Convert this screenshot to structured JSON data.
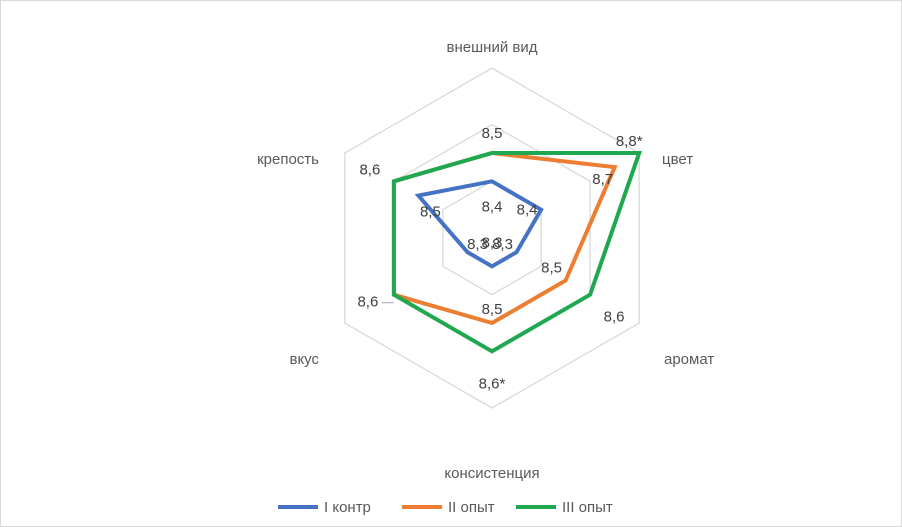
{
  "chart_data": {
    "type": "radar",
    "title": "",
    "categories": [
      "внешний вид",
      "цвет",
      "аромат",
      "консистенция",
      "вкус",
      "крепость"
    ],
    "rmin": 8.2,
    "rmax": 8.8,
    "grid_levels": [
      8.2,
      8.4,
      8.6,
      8.8
    ],
    "grid": true,
    "legend_position": "bottom",
    "series": [
      {
        "name": "I контр",
        "color": "#4472c4",
        "values": [
          8.4,
          8.4,
          8.3,
          8.3,
          8.3,
          8.5
        ],
        "labels": [
          "8,4",
          "8,4",
          "8,3",
          "8,3",
          "8,3",
          "8,5"
        ]
      },
      {
        "name": "II опыт",
        "color": "#ed7d31",
        "values": [
          8.5,
          8.7,
          8.5,
          8.5,
          8.6,
          8.6
        ],
        "labels": [
          "",
          "8,7",
          "8,5",
          "8,5",
          "",
          ""
        ]
      },
      {
        "name": "III опыт",
        "color": "#1fa84f",
        "values": [
          8.5,
          8.8,
          8.6,
          8.6,
          8.6,
          8.6
        ],
        "labels": [
          "8,5",
          "8,8*",
          "8,6",
          "8,6*",
          "8,6",
          "8,6"
        ]
      }
    ]
  }
}
